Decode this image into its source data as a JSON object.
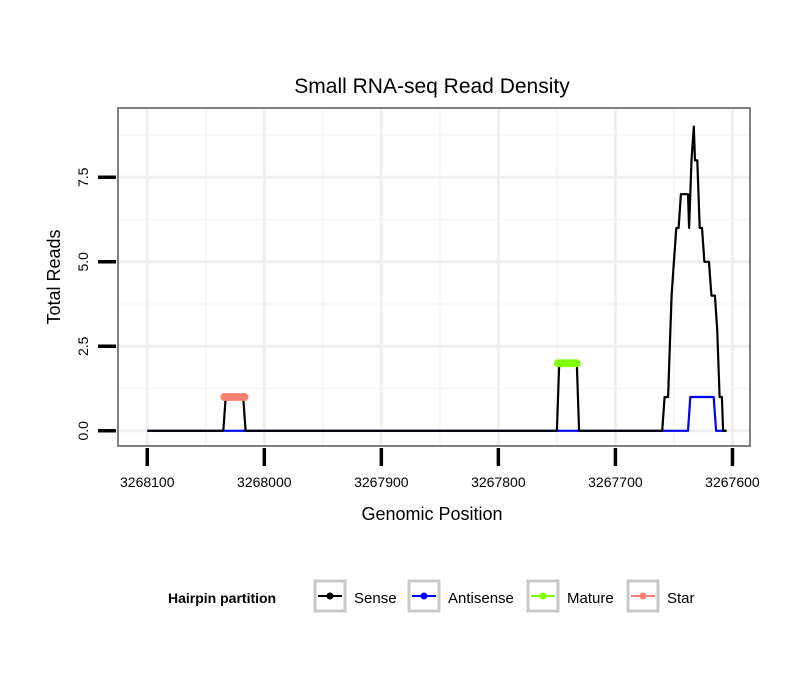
{
  "chart_data": {
    "type": "line",
    "title": "Small RNA-seq Read Density",
    "xlabel": "Genomic Position",
    "ylabel": "Total Reads",
    "xlim": [
      3268125,
      3267585
    ],
    "ylim": [
      -0.45,
      9.55
    ],
    "x_reversed": true,
    "grid": true,
    "x_ticks": [
      3268100,
      3268000,
      3267900,
      3267800,
      3267700,
      3267600
    ],
    "x_tick_labels": [
      "3268100",
      "3268000",
      "3267900",
      "3267800",
      "3267700",
      "3267600"
    ],
    "y_ticks": [
      0,
      2.5,
      5,
      7.5
    ],
    "y_tick_labels": [
      "0.0",
      "2.5",
      "5.0",
      "7.5"
    ],
    "legend": {
      "title": "Hairpin partition",
      "position": "bottom",
      "entries": [
        "Sense",
        "Antisense",
        "Mature",
        "Star"
      ]
    },
    "colors": {
      "Sense": "#000000",
      "Antisense": "#0000ff",
      "Mature": "#7fff00",
      "Star": "#fa8072"
    },
    "series": [
      {
        "name": "Sense",
        "type": "line",
        "x": [
          3268100,
          3268035,
          3268033,
          3268018,
          3268016,
          3267750,
          3267748,
          3267733,
          3267731,
          3267660,
          3267658,
          3267655,
          3267653,
          3267652,
          3267650,
          3267648,
          3267646,
          3267644,
          3267642,
          3267638,
          3267637,
          3267636,
          3267635,
          3267633,
          3267632,
          3267631,
          3267630,
          3267629,
          3267628,
          3267626,
          3267624,
          3267622,
          3267620,
          3267618,
          3267617,
          3267615,
          3267613,
          3267612,
          3267611,
          3267610,
          3267609,
          3267608,
          3267605
        ],
        "y": [
          0,
          0,
          1,
          1,
          0,
          0,
          2,
          2,
          0,
          0,
          1,
          1,
          3,
          4,
          5,
          6,
          6,
          7,
          7,
          7,
          6,
          7,
          8,
          9,
          8,
          8,
          8,
          7,
          6,
          6,
          5,
          5,
          5,
          4,
          4,
          4,
          3,
          2,
          1,
          1,
          1,
          0,
          0
        ]
      },
      {
        "name": "Antisense",
        "type": "line",
        "x": [
          3268100,
          3267638,
          3267636,
          3267616,
          3267614,
          3267605
        ],
        "y": [
          0,
          0,
          1,
          1,
          0,
          0
        ]
      },
      {
        "name": "Mature",
        "type": "points",
        "x": [
          3267749,
          3267746,
          3267743,
          3267741,
          3267738,
          3267736,
          3267733
        ],
        "y": [
          2,
          2,
          2,
          2,
          2,
          2,
          2
        ]
      },
      {
        "name": "Star",
        "type": "points",
        "x": [
          3268034,
          3268031,
          3268028,
          3268025,
          3268022,
          3268019,
          3268017
        ],
        "y": [
          1,
          1,
          1,
          1,
          1,
          1,
          1
        ]
      }
    ]
  }
}
